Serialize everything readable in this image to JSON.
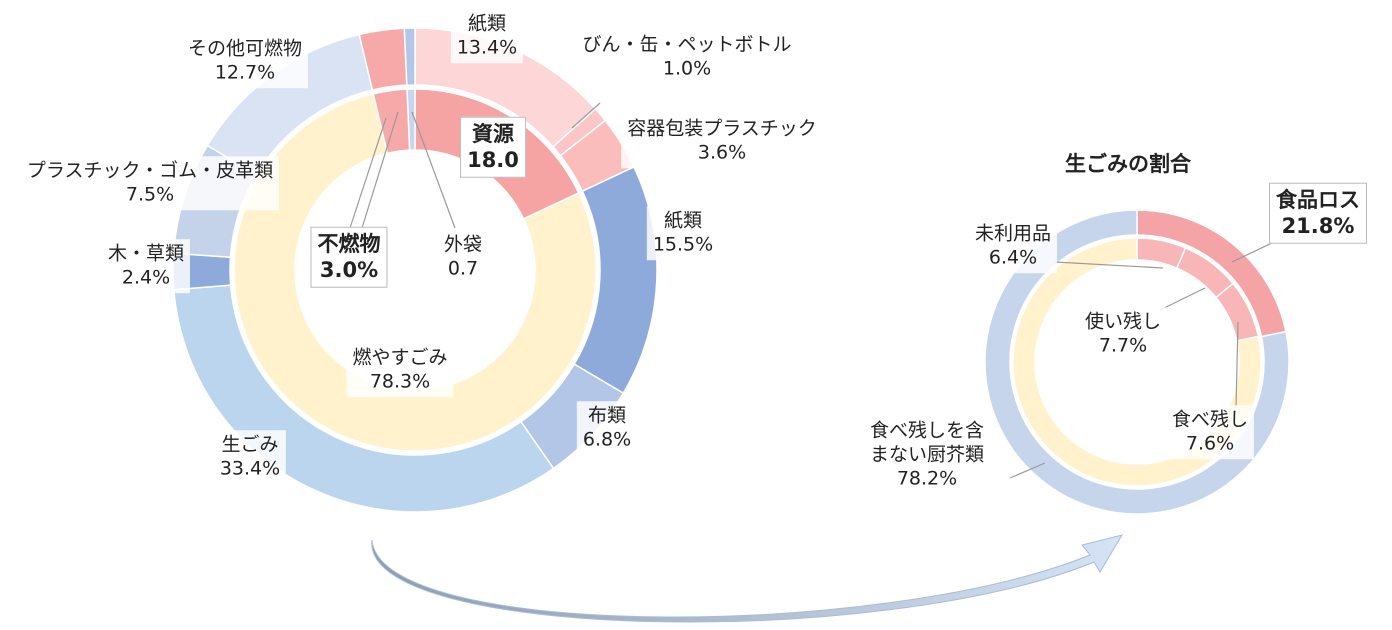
{
  "chart_data": [
    {
      "type": "donut",
      "rings": [
        {
          "categories": [
            "資源",
            "燃やすごみ",
            "不燃物",
            "外袋"
          ],
          "values": [
            18.0,
            78.3,
            3.0,
            0.7
          ],
          "value_labels": [
            "18.0",
            "78.3%",
            "3.0%",
            "0.7"
          ],
          "colors": [
            "#f5a3a3",
            "#fff2cc",
            "#f7a9a9",
            "#c9d5ee"
          ]
        },
        {
          "categories": [
            "紙類",
            "びん・缶・ペットボトル",
            "容器包装プラスチック",
            "紙類",
            "布類",
            "生ごみ",
            "木・草類",
            "プラスチック・ゴム・皮革類",
            "その他可燃物",
            null,
            null
          ],
          "values": [
            13.4,
            1.0,
            3.6,
            15.5,
            6.8,
            33.4,
            2.4,
            7.5,
            12.7,
            3.0,
            0.7
          ],
          "value_labels": [
            "13.4%",
            "1.0%",
            "3.6%",
            "15.5%",
            "6.8%",
            "33.4%",
            "2.4%",
            "7.5%",
            "12.7%",
            null,
            null
          ],
          "colors": [
            "#fdd6d8",
            "#fcc6c8",
            "#fbbcbc",
            "#8eaadb",
            "#b4c6e7",
            "#bcd5ee",
            "#8eaadb",
            "#c5d3ea",
            "#dae3f3",
            "#f7a9a9",
            "#b4c6e7"
          ]
        }
      ]
    },
    {
      "type": "donut",
      "title": "生ごみの割合",
      "rings": [
        {
          "categories": [
            "未利用品",
            "使い残し",
            "食べ残し",
            null
          ],
          "values": [
            6.4,
            7.7,
            7.6,
            78.3
          ],
          "value_labels": [
            "6.4%",
            "7.7%",
            "7.6%",
            null
          ],
          "colors": [
            "#f9b6b8",
            "#f9b6b8",
            "#f9b6b8",
            "#fff2cc"
          ]
        },
        {
          "categories": [
            "食品ロス",
            "食べ残しを含まない厨芥類"
          ],
          "values": [
            21.8,
            78.2
          ],
          "value_labels": [
            "21.8%",
            "78.2%"
          ],
          "colors": [
            "#f4a3a6",
            "#c6d5ec"
          ]
        }
      ]
    }
  ]
}
